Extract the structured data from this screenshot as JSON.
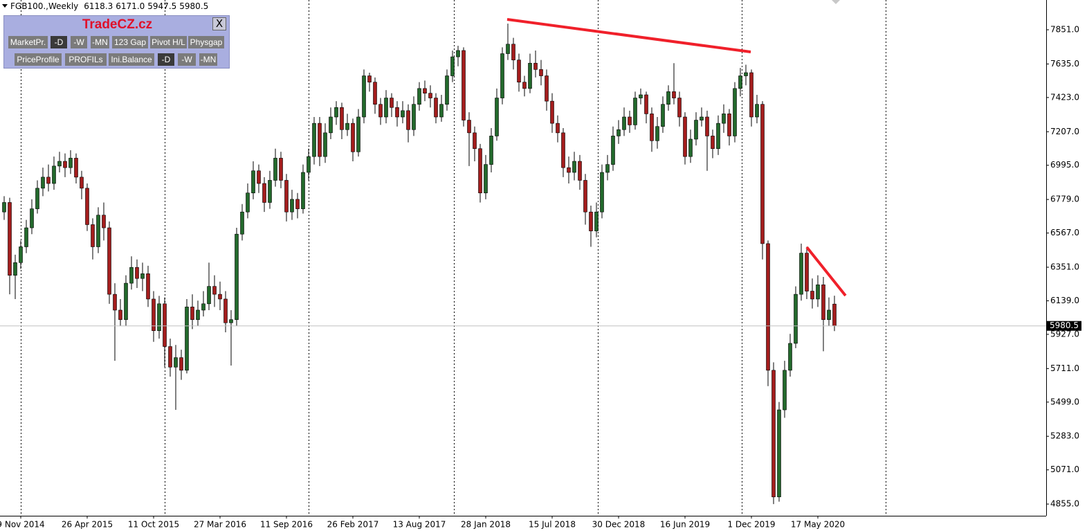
{
  "chart_data": {
    "type": "candlestick",
    "symbol": "FGB100.,Weekly",
    "header_values": [
      "6118.3",
      "6171.0",
      "5947.5",
      "5980.5"
    ],
    "current_price": 5980.5,
    "up_color": "#23692c",
    "down_color": "#a31d1d",
    "wick_color": "#000000",
    "categories": [
      null,
      null,
      null,
      "9 Nov 2014",
      null,
      null,
      null,
      null,
      null,
      null,
      null,
      null,
      null,
      null,
      null,
      "26 Apr 2015",
      null,
      null,
      null,
      null,
      null,
      null,
      null,
      null,
      null,
      null,
      null,
      "11 Oct 2015",
      null,
      null,
      null,
      null,
      null,
      null,
      null,
      null,
      null,
      null,
      null,
      "27 Mar 2016",
      null,
      null,
      null,
      null,
      null,
      null,
      null,
      null,
      null,
      null,
      null,
      "11 Sep 2016",
      null,
      null,
      null,
      null,
      null,
      null,
      null,
      null,
      null,
      null,
      null,
      "26 Feb 2017",
      null,
      null,
      null,
      null,
      null,
      null,
      null,
      null,
      null,
      null,
      null,
      "13 Aug 2017",
      null,
      null,
      null,
      null,
      null,
      null,
      null,
      null,
      null,
      null,
      null,
      "28 Jan 2018",
      null,
      null,
      null,
      null,
      null,
      null,
      null,
      null,
      null,
      null,
      null,
      "15 Jul 2018",
      null,
      null,
      null,
      null,
      null,
      null,
      null,
      null,
      null,
      null,
      null,
      "30 Dec 2018",
      null,
      null,
      null,
      null,
      null,
      null,
      null,
      null,
      null,
      null,
      null,
      "16 Jun 2019",
      null,
      null,
      null,
      null,
      null,
      null,
      null,
      null,
      null,
      null,
      null,
      "1 Dec 2019",
      null,
      null,
      null,
      null,
      null,
      null,
      null,
      null,
      null,
      null,
      null,
      "17 May 2020",
      null,
      null,
      null
    ],
    "open": [
      6700,
      6760,
      6300,
      6380,
      6480,
      6600,
      6720,
      6850,
      6920,
      6880,
      6990,
      7020,
      6980,
      7040,
      6920,
      6850,
      6620,
      6480,
      6680,
      6600,
      6180,
      6080,
      6020,
      6250,
      6350,
      6280,
      6310,
      6150,
      5950,
      6120,
      5850,
      5720,
      5780,
      5700,
      6100,
      6020,
      6080,
      6120,
      6230,
      6180,
      6150,
      6000,
      6020,
      6560,
      6700,
      6820,
      6960,
      6880,
      6760,
      6900,
      7040,
      6900,
      6700,
      6780,
      6720,
      6950,
      7050,
      7260,
      7050,
      7200,
      7300,
      7360,
      7220,
      7260,
      7080,
      7300,
      7560,
      7520,
      7380,
      7300,
      7420,
      7360,
      7300,
      7340,
      7220,
      7380,
      7480,
      7450,
      7420,
      7300,
      7380,
      7560,
      7680,
      7720,
      7280,
      7200,
      7100,
      6820,
      7000,
      7180,
      7420,
      7700,
      7760,
      7660,
      7520,
      7480,
      7640,
      7600,
      7560,
      7400,
      7260,
      7200,
      6980,
      6950,
      7020,
      6900,
      6700,
      6580,
      6700,
      6950,
      7000,
      7180,
      7220,
      7300,
      7250,
      7420,
      7440,
      7320,
      7150,
      7240,
      7380,
      7460,
      7420,
      7300,
      7050,
      7160,
      7280,
      7300,
      7180,
      7100,
      7260,
      7320,
      7180,
      7480,
      7560,
      7580,
      7300,
      7380,
      6500,
      5700,
      4900,
      5450,
      5700,
      5870,
      6180,
      6440,
      6200,
      6150,
      6240,
      6020,
      6118.3
    ],
    "high": [
      6800,
      6790,
      6430,
      6520,
      6650,
      6780,
      6900,
      6980,
      7000,
      7050,
      7080,
      7070,
      7090,
      7070,
      6960,
      6880,
      6660,
      6730,
      6760,
      6640,
      6250,
      6150,
      6300,
      6420,
      6400,
      6380,
      6360,
      6200,
      6170,
      6160,
      5900,
      5860,
      5830,
      6150,
      6180,
      6140,
      6200,
      6380,
      6300,
      6260,
      6200,
      6080,
      6600,
      6750,
      6880,
      7020,
      7000,
      6920,
      6960,
      7100,
      7080,
      6940,
      6840,
      6820,
      7000,
      7100,
      7300,
      7300,
      7260,
      7360,
      7400,
      7390,
      7320,
      7290,
      7350,
      7600,
      7580,
      7550,
      7420,
      7470,
      7450,
      7400,
      7400,
      7380,
      7430,
      7520,
      7530,
      7500,
      7450,
      7440,
      7600,
      7720,
      7750,
      7740,
      7330,
      7240,
      7130,
      7060,
      7230,
      7480,
      7740,
      7890,
      7800,
      7700,
      7560,
      7700,
      7720,
      7660,
      7600,
      7450,
      7310,
      7230,
      7050,
      7080,
      7060,
      6940,
      6740,
      6760,
      7000,
      7060,
      7240,
      7280,
      7360,
      7340,
      7460,
      7480,
      7460,
      7360,
      7300,
      7430,
      7500,
      7640,
      7460,
      7330,
      7220,
      7330,
      7360,
      7340,
      7220,
      7310,
      7380,
      7350,
      7520,
      7610,
      7630,
      7600,
      7440,
      7400,
      6520,
      5750,
      5500,
      5760,
      5930,
      6230,
      6500,
      6480,
      6280,
      6300,
      6290,
      6160,
      6171
    ],
    "low": [
      6650,
      6180,
      6150,
      6340,
      6440,
      6560,
      6690,
      6800,
      6830,
      6840,
      6950,
      6920,
      6940,
      6880,
      6780,
      6580,
      6400,
      6440,
      6520,
      6120,
      5760,
      5980,
      5980,
      6210,
      6220,
      6200,
      6100,
      5880,
      5900,
      5720,
      5660,
      5450,
      5640,
      5680,
      5960,
      5980,
      6040,
      6080,
      6100,
      6080,
      5940,
      5730,
      5980,
      6520,
      6660,
      6780,
      6820,
      6700,
      6720,
      6860,
      6850,
      6640,
      6650,
      6660,
      6690,
      6900,
      7000,
      6990,
      7010,
      7160,
      7250,
      7160,
      7180,
      7020,
      7050,
      7260,
      7460,
      7320,
      7250,
      7260,
      7300,
      7240,
      7260,
      7140,
      7180,
      7340,
      7400,
      7360,
      7260,
      7270,
      7340,
      7520,
      7620,
      7240,
      6990,
      7020,
      6760,
      6780,
      6950,
      7150,
      7380,
      7660,
      7600,
      7460,
      7430,
      7450,
      7550,
      7500,
      7340,
      7200,
      7140,
      6920,
      6880,
      6900,
      6840,
      6620,
      6480,
      6540,
      6660,
      6900,
      6960,
      7130,
      7180,
      7200,
      7220,
      7380,
      7260,
      7080,
      7100,
      7200,
      7340,
      7380,
      7240,
      7000,
      7010,
      7120,
      7240,
      6960,
      7040,
      7060,
      7200,
      7120,
      7140,
      7430,
      7500,
      7240,
      7260,
      6400,
      5600,
      4855,
      4870,
      5400,
      5660,
      5840,
      6140,
      6150,
      6090,
      6100,
      5820,
      5980,
      5947.5
    ],
    "close": [
      6760,
      6300,
      6380,
      6480,
      6600,
      6720,
      6850,
      6920,
      6880,
      6990,
      7020,
      6980,
      7040,
      6920,
      6850,
      6620,
      6480,
      6680,
      6600,
      6180,
      6080,
      6020,
      6250,
      6350,
      6280,
      6310,
      6150,
      5950,
      6120,
      5850,
      5720,
      5780,
      5700,
      6100,
      6020,
      6080,
      6120,
      6230,
      6180,
      6150,
      6000,
      6020,
      6560,
      6700,
      6820,
      6960,
      6880,
      6760,
      6900,
      7040,
      6900,
      6700,
      6780,
      6720,
      6950,
      7050,
      7260,
      7050,
      7200,
      7300,
      7360,
      7220,
      7260,
      7080,
      7300,
      7560,
      7520,
      7380,
      7300,
      7420,
      7360,
      7300,
      7340,
      7220,
      7380,
      7480,
      7450,
      7420,
      7300,
      7380,
      7560,
      7680,
      7720,
      7280,
      7200,
      7100,
      6820,
      7000,
      7180,
      7420,
      7700,
      7760,
      7660,
      7520,
      7480,
      7640,
      7600,
      7560,
      7400,
      7260,
      7200,
      6980,
      6950,
      7020,
      6900,
      6700,
      6580,
      6700,
      6950,
      7000,
      7180,
      7220,
      7300,
      7250,
      7420,
      7440,
      7320,
      7150,
      7240,
      7380,
      7460,
      7420,
      7300,
      7050,
      7160,
      7280,
      7300,
      7180,
      7100,
      7260,
      7320,
      7180,
      7480,
      7560,
      7580,
      7300,
      7380,
      6500,
      5700,
      4900,
      5450,
      5700,
      5870,
      6180,
      6440,
      6200,
      6150,
      6240,
      6020,
      6080,
      5980.5
    ],
    "ylim": [
      4781,
      8039
    ],
    "yticks": [
      {
        "value": 7851,
        "label": "7851.0"
      },
      {
        "value": 7635,
        "label": "7635.0"
      },
      {
        "value": 7423,
        "label": "7423.0"
      },
      {
        "value": 7207,
        "label": "7207.0"
      },
      {
        "value": 6995,
        "label": "6995.0"
      },
      {
        "value": 6779,
        "label": "6779.0"
      },
      {
        "value": 6567,
        "label": "6567.0"
      },
      {
        "value": 6351,
        "label": "6351.0"
      },
      {
        "value": 6139,
        "label": "6139.0"
      },
      {
        "value": 5927,
        "label": "5927.0"
      },
      {
        "value": 5711,
        "label": "5711.0"
      },
      {
        "value": 5499,
        "label": "5499.0"
      },
      {
        "value": 5283,
        "label": "5283.0"
      },
      {
        "value": 5071,
        "label": "5071.0"
      },
      {
        "value": 4855,
        "label": "4855.0"
      }
    ],
    "grid": false
  },
  "toolbar": {
    "title": "TradeCZ.cz",
    "close": "X",
    "row1": [
      "MarketPr.",
      "-D",
      "-W",
      "-MN",
      "123 Gap",
      "Pivot H/L",
      "Physgap"
    ],
    "row2": [
      "PriceProfile",
      "PROFILs",
      "Ini.Balance",
      "-D",
      "-W",
      "-MN"
    ]
  }
}
